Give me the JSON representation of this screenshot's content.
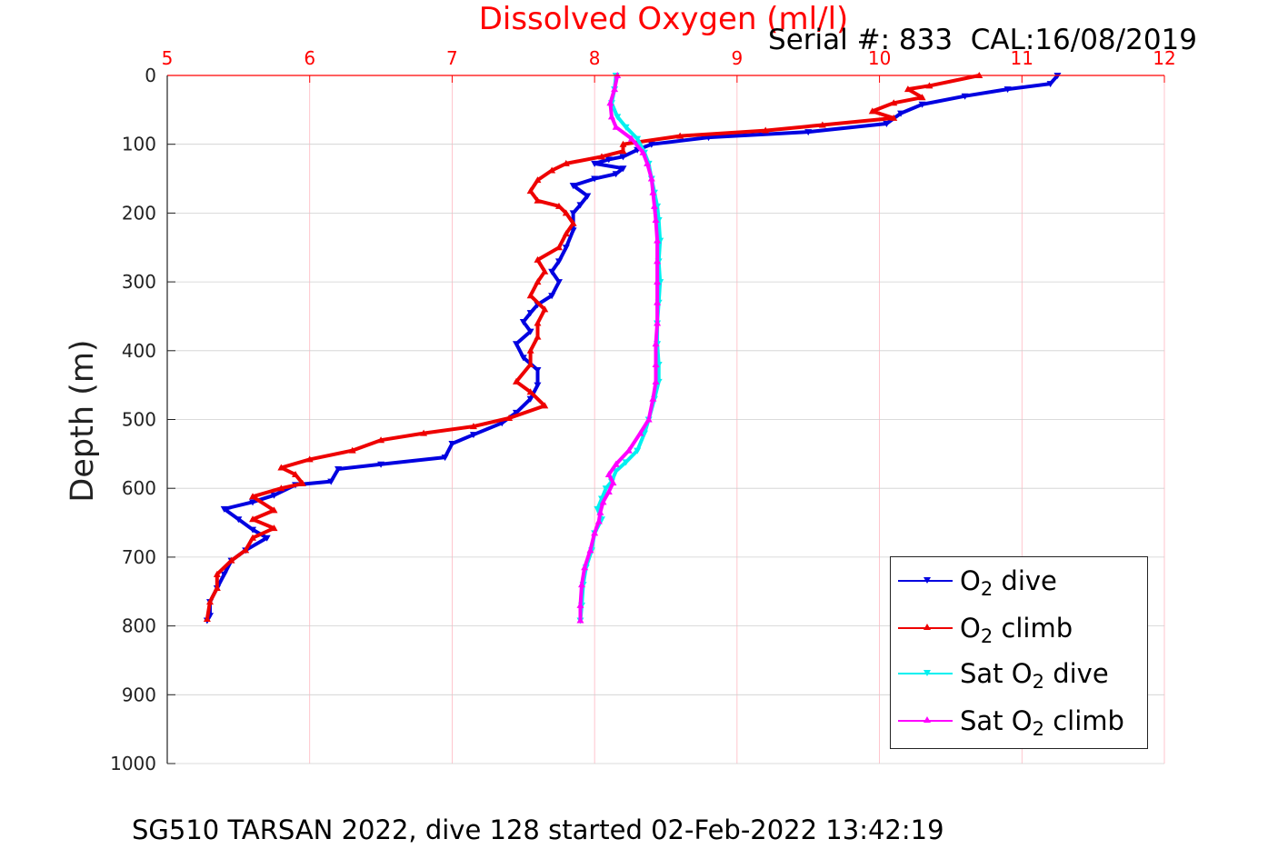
{
  "chart_data": {
    "type": "line",
    "title": "Dissolved Oxygen (ml/l)",
    "serial_text": "Serial #: 833  CAL:16/08/2019",
    "ylabel": "Depth (m)",
    "xlim": [
      5,
      12
    ],
    "ylim": [
      0,
      1000
    ],
    "y_reversed": true,
    "x_axis_position": "top",
    "xticks": [
      "5",
      "6",
      "7",
      "8",
      "9",
      "10",
      "11",
      "12"
    ],
    "yticks": [
      "0",
      "100",
      "200",
      "300",
      "400",
      "500",
      "600",
      "700",
      "800",
      "900",
      "1000"
    ],
    "grid": true,
    "legend_position": "bottom-right",
    "series": [
      {
        "label_main": "O",
        "label_sub": "2",
        "label_rest": " dive",
        "color": "#0000e0",
        "marker": "down-triangle",
        "points": [
          [
            11.25,
            0
          ],
          [
            11.2,
            12
          ],
          [
            10.9,
            20
          ],
          [
            10.6,
            30
          ],
          [
            10.3,
            42
          ],
          [
            10.15,
            55
          ],
          [
            10.05,
            70
          ],
          [
            9.5,
            82
          ],
          [
            8.8,
            90
          ],
          [
            8.4,
            100
          ],
          [
            8.3,
            108
          ],
          [
            8.2,
            118
          ],
          [
            8.1,
            122
          ],
          [
            8.0,
            128
          ],
          [
            8.2,
            135
          ],
          [
            8.15,
            143
          ],
          [
            8.0,
            150
          ],
          [
            7.85,
            160
          ],
          [
            7.95,
            175
          ],
          [
            7.9,
            188
          ],
          [
            7.85,
            200
          ],
          [
            7.85,
            225
          ],
          [
            7.8,
            250
          ],
          [
            7.75,
            270
          ],
          [
            7.7,
            285
          ],
          [
            7.75,
            300
          ],
          [
            7.7,
            320
          ],
          [
            7.6,
            333
          ],
          [
            7.55,
            345
          ],
          [
            7.5,
            358
          ],
          [
            7.55,
            372
          ],
          [
            7.45,
            390
          ],
          [
            7.5,
            410
          ],
          [
            7.6,
            428
          ],
          [
            7.6,
            450
          ],
          [
            7.55,
            470
          ],
          [
            7.45,
            490
          ],
          [
            7.35,
            505
          ],
          [
            7.15,
            522
          ],
          [
            7.0,
            535
          ],
          [
            6.95,
            555
          ],
          [
            6.5,
            565
          ],
          [
            6.2,
            572
          ],
          [
            6.15,
            590
          ],
          [
            5.9,
            595
          ],
          [
            5.75,
            610
          ],
          [
            5.6,
            620
          ],
          [
            5.4,
            630
          ],
          [
            5.5,
            645
          ],
          [
            5.6,
            660
          ],
          [
            5.7,
            672
          ],
          [
            5.55,
            690
          ],
          [
            5.45,
            705
          ],
          [
            5.4,
            725
          ],
          [
            5.35,
            745
          ],
          [
            5.3,
            765
          ],
          [
            5.3,
            785
          ],
          [
            5.28,
            792
          ]
        ]
      },
      {
        "label_main": "O",
        "label_sub": "2",
        "label_rest": " climb",
        "color": "#ee0000",
        "marker": "up-triangle",
        "points": [
          [
            10.7,
            0
          ],
          [
            10.35,
            15
          ],
          [
            10.2,
            20
          ],
          [
            10.3,
            32
          ],
          [
            10.1,
            40
          ],
          [
            9.95,
            52
          ],
          [
            10.1,
            62
          ],
          [
            9.6,
            72
          ],
          [
            9.2,
            80
          ],
          [
            8.6,
            88
          ],
          [
            8.2,
            100
          ],
          [
            8.2,
            110
          ],
          [
            8.05,
            118
          ],
          [
            7.8,
            128
          ],
          [
            7.7,
            138
          ],
          [
            7.6,
            152
          ],
          [
            7.55,
            168
          ],
          [
            7.6,
            182
          ],
          [
            7.75,
            190
          ],
          [
            7.8,
            200
          ],
          [
            7.85,
            215
          ],
          [
            7.8,
            230
          ],
          [
            7.75,
            250
          ],
          [
            7.6,
            268
          ],
          [
            7.65,
            285
          ],
          [
            7.6,
            300
          ],
          [
            7.55,
            320
          ],
          [
            7.65,
            340
          ],
          [
            7.6,
            360
          ],
          [
            7.6,
            380
          ],
          [
            7.55,
            400
          ],
          [
            7.55,
            420
          ],
          [
            7.45,
            445
          ],
          [
            7.55,
            460
          ],
          [
            7.65,
            480
          ],
          [
            7.4,
            498
          ],
          [
            7.15,
            510
          ],
          [
            6.8,
            520
          ],
          [
            6.5,
            530
          ],
          [
            6.3,
            545
          ],
          [
            6.0,
            558
          ],
          [
            5.8,
            570
          ],
          [
            5.9,
            580
          ],
          [
            5.95,
            593
          ],
          [
            5.8,
            600
          ],
          [
            5.6,
            612
          ],
          [
            5.75,
            632
          ],
          [
            5.6,
            645
          ],
          [
            5.75,
            658
          ],
          [
            5.6,
            672
          ],
          [
            5.55,
            690
          ],
          [
            5.45,
            705
          ],
          [
            5.35,
            725
          ],
          [
            5.35,
            745
          ],
          [
            5.3,
            765
          ],
          [
            5.28,
            790
          ]
        ]
      },
      {
        "label_main": "Sat O",
        "label_sub": "2",
        "label_rest": " dive",
        "color": "#00f0f0",
        "marker": "down-triangle",
        "points": [
          [
            8.15,
            0
          ],
          [
            8.14,
            20
          ],
          [
            8.12,
            40
          ],
          [
            8.16,
            60
          ],
          [
            8.22,
            75
          ],
          [
            8.3,
            92
          ],
          [
            8.35,
            112
          ],
          [
            8.38,
            128
          ],
          [
            8.4,
            150
          ],
          [
            8.42,
            170
          ],
          [
            8.44,
            190
          ],
          [
            8.45,
            210
          ],
          [
            8.46,
            240
          ],
          [
            8.45,
            270
          ],
          [
            8.46,
            300
          ],
          [
            8.45,
            330
          ],
          [
            8.44,
            360
          ],
          [
            8.44,
            390
          ],
          [
            8.45,
            420
          ],
          [
            8.45,
            445
          ],
          [
            8.42,
            470
          ],
          [
            8.38,
            500
          ],
          [
            8.35,
            520
          ],
          [
            8.3,
            545
          ],
          [
            8.22,
            562
          ],
          [
            8.15,
            575
          ],
          [
            8.12,
            590
          ],
          [
            8.08,
            600
          ],
          [
            8.05,
            615
          ],
          [
            8.02,
            630
          ],
          [
            8.05,
            645
          ],
          [
            8.0,
            665
          ],
          [
            7.98,
            690
          ],
          [
            7.94,
            715
          ],
          [
            7.92,
            740
          ],
          [
            7.91,
            770
          ],
          [
            7.9,
            792
          ]
        ]
      },
      {
        "label_main": "Sat O",
        "label_sub": "2",
        "label_rest": " climb",
        "color": "#ff00ff",
        "marker": "up-triangle",
        "points": [
          [
            8.16,
            0
          ],
          [
            8.14,
            20
          ],
          [
            8.11,
            40
          ],
          [
            8.12,
            60
          ],
          [
            8.15,
            75
          ],
          [
            8.26,
            92
          ],
          [
            8.34,
            112
          ],
          [
            8.37,
            128
          ],
          [
            8.4,
            150
          ],
          [
            8.41,
            170
          ],
          [
            8.42,
            190
          ],
          [
            8.43,
            210
          ],
          [
            8.44,
            240
          ],
          [
            8.44,
            270
          ],
          [
            8.44,
            300
          ],
          [
            8.44,
            330
          ],
          [
            8.44,
            360
          ],
          [
            8.43,
            390
          ],
          [
            8.43,
            420
          ],
          [
            8.43,
            445
          ],
          [
            8.41,
            470
          ],
          [
            8.38,
            500
          ],
          [
            8.32,
            520
          ],
          [
            8.24,
            545
          ],
          [
            8.15,
            565
          ],
          [
            8.1,
            580
          ],
          [
            8.13,
            592
          ],
          [
            8.1,
            605
          ],
          [
            8.06,
            620
          ],
          [
            8.04,
            635
          ],
          [
            8.03,
            648
          ],
          [
            8.0,
            665
          ],
          [
            7.97,
            690
          ],
          [
            7.93,
            715
          ],
          [
            7.91,
            740
          ],
          [
            7.9,
            770
          ],
          [
            7.9,
            792
          ]
        ]
      }
    ]
  },
  "footer": "SG510 TARSAN 2022, dive 128 started 02-Feb-2022 13:42:19"
}
